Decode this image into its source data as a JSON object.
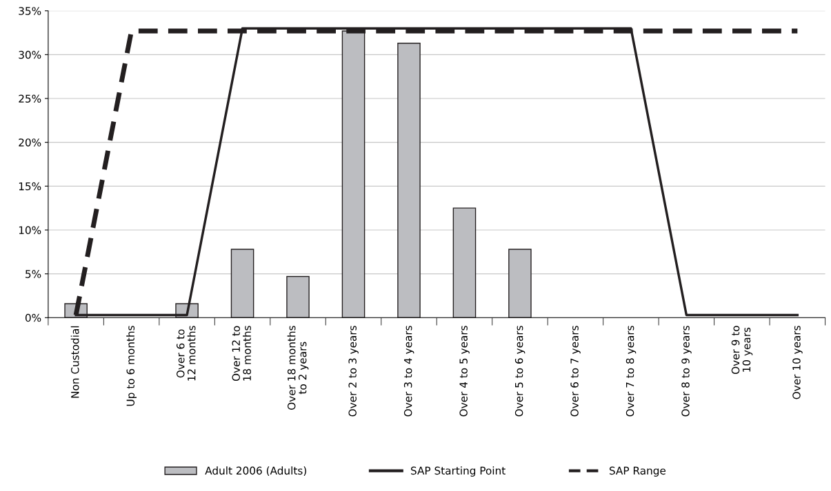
{
  "chart_data": {
    "type": "bar",
    "categories": [
      "Non Custodial",
      "Up to 6 months",
      "Over 6 to 12 months",
      "Over 12 to 18 months",
      "Over 18 months to 2 years",
      "Over 2 to 3 years",
      "Over 3 to 4 years",
      "Over 4 to 5 years",
      "Over 5 to 6 years",
      "Over 6 to 7 years",
      "Over 7 to 8 years",
      "Over 8 to 9 years",
      "Over 9 to 10 years",
      "Over 10 years"
    ],
    "series": [
      {
        "name": "Adult 2006 (Adults)",
        "color": "#bcbdc1",
        "values": [
          1.6,
          0,
          1.6,
          7.8,
          4.7,
          32.7,
          31.3,
          12.5,
          7.8,
          0,
          0,
          0,
          0,
          0
        ]
      },
      {
        "name": "SAP Starting Point",
        "type": "line",
        "line_style": "solid",
        "color": "#231f20",
        "values": [
          0.3,
          0.3,
          0.3,
          33,
          33,
          33,
          33,
          33,
          33,
          33,
          33,
          0.3,
          0.3,
          0.3
        ]
      },
      {
        "name": "SAP Range",
        "type": "line",
        "line_style": "dashed",
        "color": "#231f20",
        "values": [
          0.3,
          32.7,
          32.7,
          32.7,
          32.7,
          32.7,
          32.7,
          32.7,
          32.7,
          32.7,
          32.7,
          32.7,
          32.7,
          32.7
        ]
      }
    ],
    "ylim": [
      0,
      35
    ],
    "yticks": [
      {
        "value": 0,
        "label": "0%"
      },
      {
        "value": 5,
        "label": "5%"
      },
      {
        "value": 10,
        "label": "10%"
      },
      {
        "value": 15,
        "label": "15%"
      },
      {
        "value": 20,
        "label": "20%"
      },
      {
        "value": 25,
        "label": "25%"
      },
      {
        "value": 30,
        "label": "30%"
      },
      {
        "value": 35,
        "label": "35%"
      }
    ],
    "grid": "y",
    "legend": "bottom",
    "marker": "none"
  }
}
